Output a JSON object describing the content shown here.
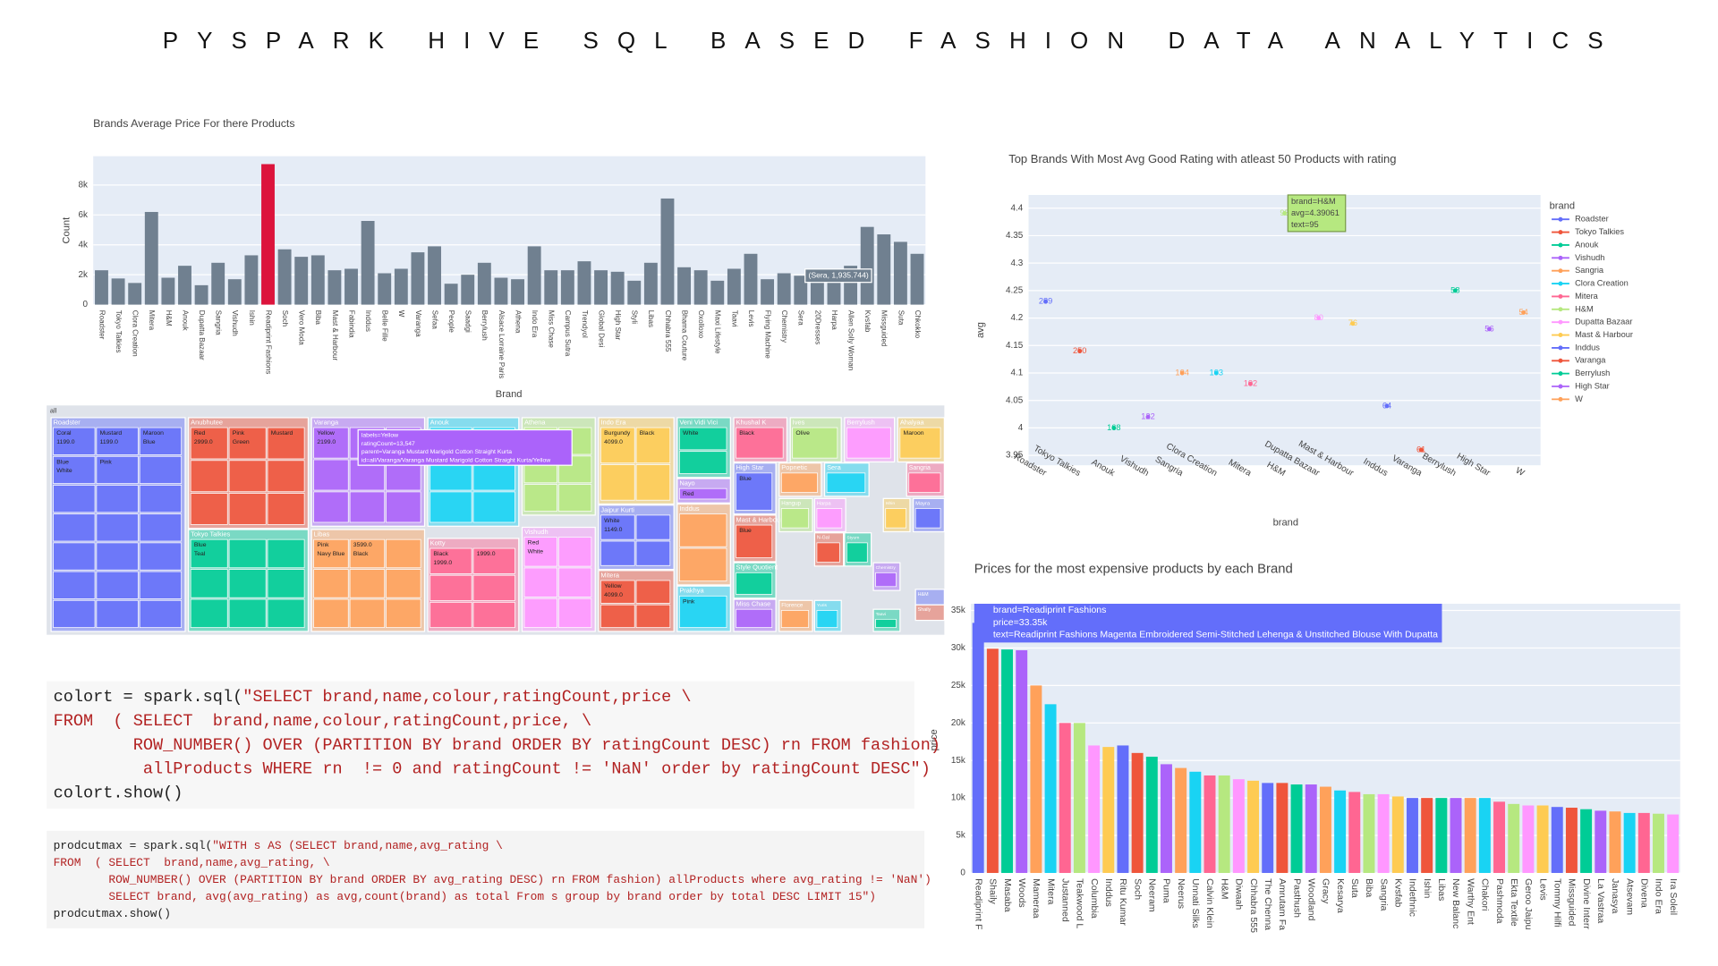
{
  "title": "PYSPARK HIVE SQL BASED FASHION DATA ANALYTICS",
  "chart_data": [
    {
      "type": "bar",
      "title": "Brands Average Price For there Products",
      "x_label": "Brand",
      "y_label": "Count",
      "categories": [
        "Roadster",
        "Tokyo Talkies",
        "Clora Creation",
        "Mitera",
        "H&M",
        "Anouk",
        "Dupatta Bazaar",
        "Sangria",
        "Vishudh",
        "Ishin",
        "Readiprint Fashions",
        "Soch",
        "Vero Moda",
        "Biba",
        "Mast & Harbour",
        "Fabindia",
        "Inddus",
        "Belle Fille",
        "W",
        "Varanga",
        "Sefaa",
        "People",
        "Saadgi",
        "Berrylush",
        "Alsace Lorraine Paris",
        "Athena",
        "Indo Era",
        "Miss Chase",
        "Campus Sutra",
        "Trendyol",
        "Global Desi",
        "High Star",
        "Styli",
        "Libas",
        "Chhabra 555",
        "Bhama Couture",
        "Oxolloxo",
        "Maxi Lifestyle",
        "Taavi",
        "Levis",
        "Flying Machine",
        "Chemistry",
        "Sera",
        "20Dresses",
        "Harpa",
        "Allen Solly Woman",
        "Kvsfab",
        "Missguided",
        "Suta",
        "Chkokko"
      ],
      "values": [
        2300,
        1750,
        1450,
        6200,
        1800,
        2600,
        1300,
        2800,
        1700,
        3300,
        9400,
        3700,
        3200,
        3300,
        2300,
        2400,
        5600,
        2100,
        2400,
        3500,
        3900,
        1400,
        2000,
        2800,
        1800,
        1700,
        3900,
        2300,
        2300,
        2900,
        2300,
        2200,
        1600,
        2800,
        7100,
        2500,
        2300,
        1600,
        2400,
        3400,
        1700,
        2100,
        1935.744,
        2200,
        1900,
        2600,
        5200,
        4700,
        4200,
        3400
      ],
      "colors": [
        "#708090",
        "#708090",
        "#708090",
        "#708090",
        "#708090",
        "#708090",
        "#708090",
        "#708090",
        "#708090",
        "#708090",
        "#dc143c",
        "#708090",
        "#708090",
        "#708090",
        "#708090",
        "#708090",
        "#708090",
        "#708090",
        "#708090",
        "#708090",
        "#708090",
        "#708090",
        "#708090",
        "#708090",
        "#708090",
        "#708090",
        "#708090",
        "#708090",
        "#708090",
        "#708090",
        "#708090",
        "#708090",
        "#708090",
        "#708090",
        "#708090",
        "#708090",
        "#708090",
        "#708090",
        "#708090",
        "#708090",
        "#708090",
        "#708090",
        "#708090",
        "#708090",
        "#708090",
        "#708090",
        "#708090",
        "#708090",
        "#708090",
        "#708090"
      ],
      "ylim": [
        0,
        9930
      ],
      "yticks": [
        0,
        {
          "value": 2000,
          "label": "2k"
        },
        {
          "value": 4000,
          "label": "4k"
        },
        {
          "value": 6000,
          "label": "6k"
        },
        {
          "value": 8000,
          "label": "8k"
        }
      ],
      "grid": true,
      "annotation": "(Sera, 1,935.744)"
    },
    {
      "type": "scatter",
      "title": "Top Brands With Most Avg Good Rating with atleast 50 Products with rating",
      "x_label": "brand",
      "y_label": "avg",
      "legend_title": "brand",
      "categories": [
        "Roadster",
        "Tokyo Talkies",
        "Anouk",
        "Vishudh",
        "Sangria",
        "Clora Creation",
        "Mitera",
        "H&M",
        "Dupatta Bazaar",
        "Mast & Harbour",
        "Inddus",
        "Varanga",
        "Berrylush",
        "High Star",
        "W"
      ],
      "values": [
        4.23,
        4.14,
        4.0,
        4.02,
        4.1,
        4.1,
        4.08,
        4.39061,
        4.2,
        4.19,
        4.04,
        3.96,
        4.25,
        4.18,
        4.21
      ],
      "counts": [
        289,
        250,
        168,
        122,
        104,
        103,
        102,
        95,
        80,
        76,
        64,
        61,
        58,
        56,
        54
      ],
      "palette": [
        "#636efa",
        "#ef553b",
        "#00cc96",
        "#ab63fa",
        "#ffa15a",
        "#19d3f3",
        "#ff6692",
        "#b6e880",
        "#ff97ff",
        "#fecb52"
      ],
      "ylim": [
        3.932,
        4.424
      ],
      "yticks": [
        3.95,
        4,
        4.05,
        4.1,
        4.15,
        4.2,
        4.25,
        4.3,
        4.35,
        4.4
      ],
      "grid": true,
      "tooltip": [
        "brand=H&M",
        "avg=4.39061",
        "text=95"
      ]
    },
    {
      "type": "bar",
      "title": "Prices for the most expensive products by each Brand",
      "y_label": "price",
      "categories": [
        "Readiprint F",
        "Shaily",
        "Masaba",
        "Woods",
        "Mameraa",
        "Mitera",
        "Justanned",
        "Teakwood L",
        "Columbia",
        "Inddus",
        "Ritu Kumar",
        "Soch",
        "Neeram",
        "Puma",
        "Neerus",
        "Unnati Silks",
        "Calvin Klein",
        "H&M",
        "Diwaah",
        "Chhabra 555",
        "The Chenna",
        "Amrutam Fa",
        "Pasthush",
        "Woodland",
        "Gracy",
        "Kesarya",
        "Suta",
        "Biba",
        "Sangria",
        "Kvsfab",
        "Indethnic",
        "Ishin",
        "Libas",
        "New Balanc",
        "Warthy Ent",
        "Chakori",
        "Pashmoda",
        "Ekta Textile",
        "Geroo Jaipu",
        "Levis",
        "Tommy Hilfi",
        "Missguided",
        "Divine Interr",
        "La Vastraa",
        "Janasya",
        "Atsevam",
        "Divena",
        "Indo Era",
        "Ira Soleil"
      ],
      "values": [
        33350,
        29900,
        29800,
        29700,
        25000,
        22500,
        20000,
        20000,
        17000,
        16800,
        17000,
        16000,
        15500,
        14500,
        14000,
        13500,
        13000,
        13000,
        12500,
        12300,
        12000,
        12000,
        11800,
        11800,
        11500,
        11000,
        10800,
        10500,
        10500,
        10200,
        10000,
        10000,
        10000,
        10000,
        10000,
        10000,
        9500,
        9200,
        9000,
        9000,
        8800,
        8700,
        8500,
        8300,
        8200,
        8000,
        8000,
        7900,
        7800
      ],
      "palette": [
        "#636efa",
        "#ef553b",
        "#00cc96",
        "#ab63fa",
        "#ffa15a",
        "#19d3f3",
        "#ff6692",
        "#b6e880",
        "#ff97ff",
        "#fecb52"
      ],
      "ylim": [
        0,
        35900
      ],
      "yticks": [
        0,
        {
          "value": 5000,
          "label": "5k"
        },
        {
          "value": 10000,
          "label": "10k"
        },
        {
          "value": 15000,
          "label": "15k"
        },
        {
          "value": 20000,
          "label": "20k"
        },
        {
          "value": 25000,
          "label": "25k"
        },
        {
          "value": 30000,
          "label": "30k"
        },
        {
          "value": 35000,
          "label": "35k"
        }
      ],
      "grid": true,
      "tooltip": [
        "brand=Readiprint Fashions",
        "price=33.35k",
        "text=Readiprint Fashions Magenta Embroidered Semi-Stitched Lehenga & Unstitched Blouse With Dupatta"
      ]
    },
    {
      "type": "treemap",
      "root": "all",
      "brands": [
        {
          "name": "Roadster",
          "color": "#636efa",
          "items": [
            "Coral",
            "1199.0",
            "Mustard",
            "1199.0",
            "Maroon",
            "Blue",
            "Blue",
            "White",
            "Pink"
          ]
        },
        {
          "name": "Anubhutee",
          "color": "#ef553b",
          "items": [
            "Red",
            "2999.0",
            "Pink",
            "Green",
            "Mustard"
          ]
        },
        {
          "name": "Tokyo Talkies",
          "color": "#00cc96",
          "items": [
            "Blue",
            "Teal"
          ]
        },
        {
          "name": "Varanga",
          "color": "#ab63fa",
          "items": [
            "Yellow",
            "2199.0"
          ]
        },
        {
          "name": "Libas",
          "color": "#ffa15a",
          "items": [
            "Pink",
            "Navy Blue",
            "3599.0",
            "Black"
          ]
        },
        {
          "name": "Anouk",
          "color": "#19d3f3",
          "items": []
        },
        {
          "name": "Kotty",
          "color": "#ff6692",
          "items": [
            "Black",
            "1999.0",
            "1999.0"
          ]
        },
        {
          "name": "Athena",
          "color": "#b6e880",
          "items": []
        },
        {
          "name": "Vishudh",
          "color": "#ff97ff",
          "items": [
            "Red",
            "White"
          ]
        },
        {
          "name": "Indo Era",
          "color": "#fecb52",
          "items": [
            "Burgundy",
            "4099.0",
            "Black"
          ]
        },
        {
          "name": "Jaipur Kurti",
          "color": "#636efa",
          "items": [
            "White",
            "1149.0"
          ]
        },
        {
          "name": "Mitera",
          "color": "#ef553b",
          "items": [
            "Yellow",
            "4099.0"
          ]
        },
        {
          "name": "Veni Vidi Vici",
          "color": "#00cc96",
          "items": [
            "White"
          ]
        },
        {
          "name": "Nayo",
          "color": "#ab63fa",
          "items": [
            "Red"
          ]
        },
        {
          "name": "Inddus",
          "color": "#ffa15a",
          "items": []
        },
        {
          "name": "Prakhya",
          "color": "#19d3f3",
          "items": [
            "Pink"
          ]
        },
        {
          "name": "Khushal K",
          "color": "#ff6692",
          "items": [
            "Black"
          ]
        },
        {
          "name": "Ives",
          "color": "#b6e880",
          "items": [
            "Olive"
          ]
        },
        {
          "name": "Berrylush",
          "color": "#ff97ff",
          "items": []
        },
        {
          "name": "Ahalyaa",
          "color": "#fecb52",
          "items": [
            "Maroon"
          ]
        },
        {
          "name": "High Star",
          "color": "#636efa",
          "items": [
            "Blue"
          ]
        },
        {
          "name": "Mast & Harbour",
          "color": "#ef553b",
          "items": [
            "Blue"
          ]
        },
        {
          "name": "Style Quotient",
          "color": "#00cc96",
          "items": []
        },
        {
          "name": "Miss Chase",
          "color": "#ab63fa",
          "items": []
        },
        {
          "name": "Popnetic",
          "color": "#ffa15a",
          "items": []
        },
        {
          "name": "Sera",
          "color": "#19d3f3",
          "items": []
        },
        {
          "name": "Sangria",
          "color": "#ff6692",
          "items": []
        },
        {
          "name": "Hangup",
          "color": "#b6e880",
          "items": []
        },
        {
          "name": "Harpa",
          "color": "#ff97ff",
          "items": []
        },
        {
          "name": "Ishin",
          "color": "#fecb52",
          "items": []
        },
        {
          "name": "Mayra",
          "color": "#636efa",
          "items": []
        },
        {
          "name": "N-Gal",
          "color": "#ef553b",
          "items": []
        },
        {
          "name": "Styum",
          "color": "#00cc96",
          "items": []
        },
        {
          "name": "Chemistry",
          "color": "#ab63fa",
          "items": []
        },
        {
          "name": "H&M",
          "color": "#636efa",
          "items": []
        },
        {
          "name": "Shaily",
          "color": "#ef553b",
          "items": []
        },
        {
          "name": "Taavi",
          "color": "#00cc96",
          "items": []
        },
        {
          "name": "Florence",
          "color": "#ffa15a",
          "items": []
        },
        {
          "name": "Yuris",
          "color": "#19d3f3",
          "items": []
        }
      ],
      "tooltip": [
        "labels=Yellow",
        "ratingCount=13,547",
        "parent=Varanga Mustard Marigold Cotton Straight Kurta",
        "id=all/Varanga/Varanga Mustard Marigold Cotton Straight Kurta/Yellow"
      ]
    }
  ],
  "code_blocks": [
    {
      "lines": [
        {
          "plain": "colort = spark.sql(",
          "string": "\"SELECT brand,name,colour,ratingCount,price \\"
        },
        {
          "string": "FROM  ( SELECT  brand,name,colour,ratingCount,price, \\"
        },
        {
          "string": "        ROW_NUMBER() OVER (PARTITION BY brand ORDER BY ratingCount DESC) rn FROM fashion)"
        },
        {
          "string": "         allProducts WHERE rn  != 0 and ratingCount != 'NaN' order by ratingCount DESC\")"
        },
        {
          "plain": "colort.show()"
        }
      ]
    },
    {
      "lines": [
        {
          "plain": "prodcutmax = spark.sql(",
          "string": "\"WITH s AS (SELECT brand,name,avg_rating \\"
        },
        {
          "string": "FROM  ( SELECT  brand,name,avg_rating, \\"
        },
        {
          "string": "        ROW_NUMBER() OVER (PARTITION BY brand ORDER BY avg_rating DESC) rn FROM fashion) allProducts where avg_rating != 'NaN')"
        },
        {
          "string": "        SELECT brand, avg(avg_rating) as avg,count(brand) as total From s group by brand order by total DESC LIMIT 15\")"
        },
        {
          "plain": "prodcutmax.show()"
        }
      ]
    }
  ]
}
